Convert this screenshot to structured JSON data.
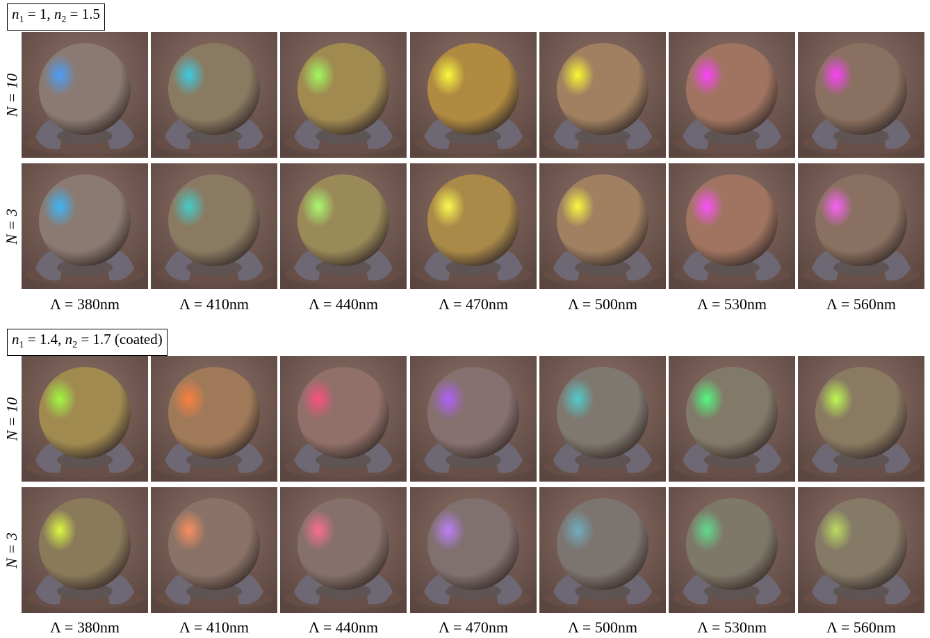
{
  "panels": [
    {
      "title_parts": {
        "n1": "n",
        "s1": "1",
        "e1": " = 1, ",
        "n2": "n",
        "s2": "2",
        "e2": " = 1.5"
      },
      "rows": [
        "N = 10",
        "N = 3"
      ],
      "colors": {
        "background": "#8d7167",
        "rows": [
          [
            "#4aa0ff",
            "#38d0e8",
            "#a0ff60",
            "#ffff40",
            "#ffff30",
            "#ff40ff",
            "#ff40ff"
          ],
          [
            "#3ab8ff",
            "#40d0d0",
            "#a8ff70",
            "#ffff50",
            "#ffff40",
            "#ff50ff",
            "#ff60ff"
          ]
        ],
        "body": [
          [
            "#8a7a72",
            "#8a7a62",
            "#a08a50",
            "#b08a40",
            "#a08060",
            "#a07460",
            "#8a7060"
          ],
          [
            "#8a7a72",
            "#8a7a62",
            "#9a8a58",
            "#aa8a48",
            "#a08060",
            "#a07460",
            "#8a7060"
          ]
        ]
      },
      "captions": [
        "Λ = 380nm",
        "Λ = 410nm",
        "Λ = 440nm",
        "Λ = 470nm",
        "Λ = 500nm",
        "Λ = 530nm",
        "Λ = 560nm"
      ]
    },
    {
      "title_parts": {
        "n1": "n",
        "s1": "1",
        "e1": " = 1.4, ",
        "n2": "n",
        "s2": "2",
        "e2": " = 1.7 (coated)"
      },
      "rows": [
        "N = 10",
        "N = 3"
      ],
      "colors": {
        "background": "#8d7167",
        "rows": [
          [
            "#a0ff40",
            "#ff8040",
            "#ff5080",
            "#b060ff",
            "#50d0d0",
            "#50ff80",
            "#c0ff50"
          ],
          [
            "#e0ff40",
            "#ff9060",
            "#ff7090",
            "#c080ff",
            "#70b0c0",
            "#60e090",
            "#c0e060"
          ]
        ],
        "body": [
          [
            "#a08a50",
            "#a07a58",
            "#907068",
            "#867070",
            "#7e7870",
            "#827a68",
            "#8a7a62"
          ],
          [
            "#8a7a5a",
            "#8a7266",
            "#86706c",
            "#807070",
            "#7c7470",
            "#7e7868",
            "#847a66"
          ]
        ]
      },
      "captions": [
        "Λ = 380nm",
        "Λ = 410nm",
        "Λ = 440nm",
        "Λ = 470nm",
        "Λ = 500nm",
        "Λ = 530nm",
        "Λ = 560nm"
      ]
    }
  ]
}
